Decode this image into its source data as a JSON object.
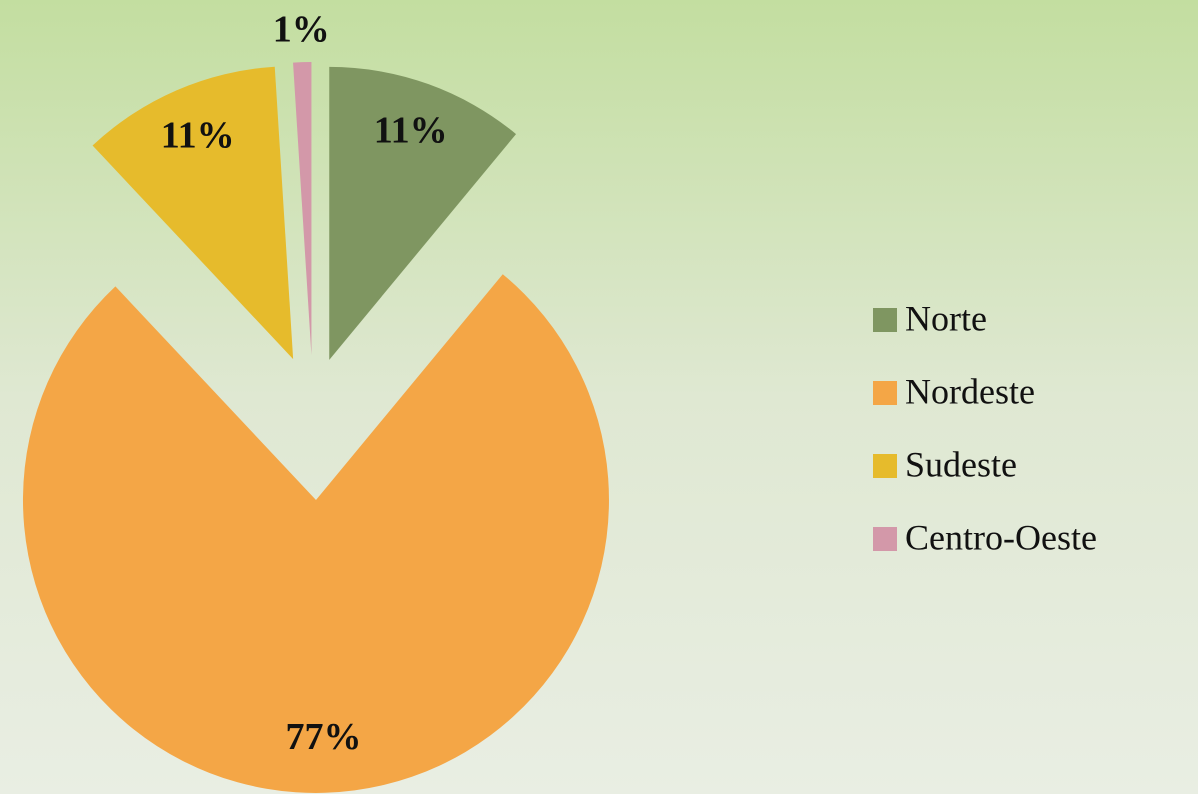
{
  "chart_data": {
    "type": "pie",
    "categories": [
      "Norte",
      "Nordeste",
      "Sudeste",
      "Centro-Oeste"
    ],
    "values": [
      11,
      77,
      11,
      1
    ],
    "value_labels": [
      "11%",
      "77%",
      "11%",
      "1%"
    ],
    "colors": [
      "#7f9661",
      "#f4a646",
      "#e6bb2c",
      "#d398a9"
    ],
    "legend": "right"
  }
}
